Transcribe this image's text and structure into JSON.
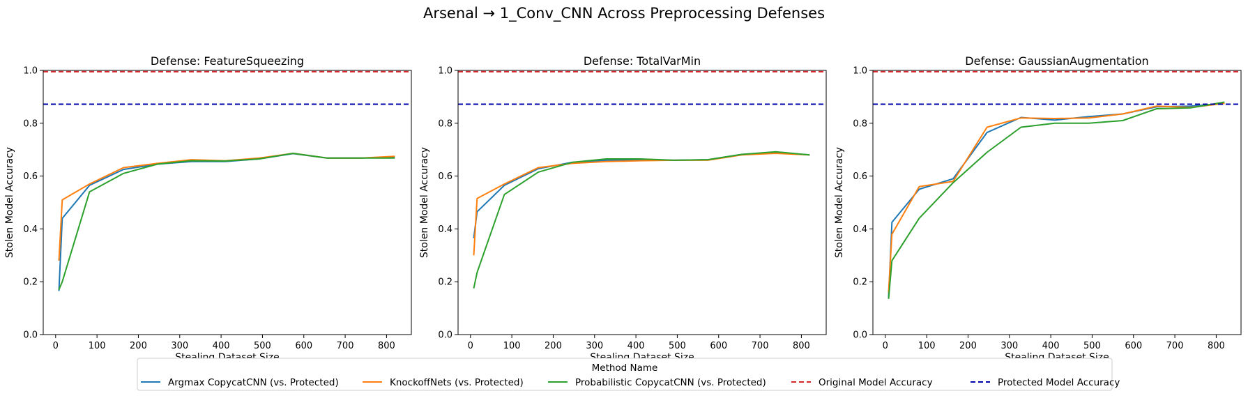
{
  "figure": {
    "title": "Arsenal → 1_Conv_CNN Across Preprocessing Defenses"
  },
  "colors": {
    "argmax": "#1f77b4",
    "knockoff": "#ff7f0e",
    "probabilistic": "#2ca02c",
    "original": "#d62728",
    "protected": "#0000aa"
  },
  "legend": {
    "title": "Method Name",
    "placement": "bottom-center",
    "items": [
      {
        "label": "Argmax CopycatCNN (vs. Protected)",
        "color_key": "argmax",
        "style": "solid"
      },
      {
        "label": "KnockoffNets (vs. Protected)",
        "color_key": "knockoff",
        "style": "solid"
      },
      {
        "label": "Probabilistic CopycatCNN (vs. Protected)",
        "color_key": "probabilistic",
        "style": "solid"
      },
      {
        "label": "Original Model Accuracy",
        "color_key": "original",
        "style": "dashed"
      },
      {
        "label": "Protected Model Accuracy",
        "color_key": "protected",
        "style": "dashed"
      }
    ]
  },
  "chart_data": [
    {
      "type": "line",
      "title": "Defense: FeatureSqueezing",
      "xlabel": "Stealing Dataset Size",
      "ylabel": "Stolen Model Accuracy",
      "xlim": [
        -30,
        860
      ],
      "ylim": [
        0,
        1.0
      ],
      "xticks": [
        0,
        100,
        200,
        300,
        400,
        500,
        600,
        700,
        800
      ],
      "yticks": [
        0.0,
        0.2,
        0.4,
        0.6,
        0.8,
        1.0
      ],
      "grid": false,
      "hlines": [
        {
          "name": "Original Model Accuracy",
          "y": 0.995,
          "color_key": "original"
        },
        {
          "name": "Protected Model Accuracy",
          "y": 0.872,
          "color_key": "protected"
        }
      ],
      "series": [
        {
          "name": "Argmax CopycatCNN (vs. Protected)",
          "color_key": "argmax",
          "x": [
            8,
            16,
            82,
            164,
            246,
            328,
            410,
            492,
            574,
            656,
            738,
            820
          ],
          "y": [
            0.165,
            0.44,
            0.565,
            0.625,
            0.645,
            0.655,
            0.655,
            0.665,
            0.685,
            0.668,
            0.668,
            0.672
          ]
        },
        {
          "name": "KnockoffNets (vs. Protected)",
          "color_key": "knockoff",
          "x": [
            8,
            16,
            82,
            164,
            246,
            328,
            410,
            492,
            574,
            656,
            738,
            820
          ],
          "y": [
            0.28,
            0.51,
            0.57,
            0.632,
            0.648,
            0.662,
            0.658,
            0.668,
            0.686,
            0.668,
            0.668,
            0.675
          ]
        },
        {
          "name": "Probabilistic CopycatCNN (vs. Protected)",
          "color_key": "probabilistic",
          "x": [
            8,
            16,
            82,
            164,
            246,
            328,
            410,
            492,
            574,
            656,
            738,
            820
          ],
          "y": [
            0.17,
            0.2,
            0.54,
            0.61,
            0.645,
            0.658,
            0.657,
            0.665,
            0.686,
            0.668,
            0.668,
            0.668
          ]
        }
      ]
    },
    {
      "type": "line",
      "title": "Defense: TotalVarMin",
      "xlabel": "Stealing Dataset Size",
      "ylabel": "Stolen Model Accuracy",
      "xlim": [
        -30,
        860
      ],
      "ylim": [
        0,
        1.0
      ],
      "xticks": [
        0,
        100,
        200,
        300,
        400,
        500,
        600,
        700,
        800
      ],
      "yticks": [
        0.0,
        0.2,
        0.4,
        0.6,
        0.8,
        1.0
      ],
      "grid": false,
      "hlines": [
        {
          "name": "Original Model Accuracy",
          "y": 0.995,
          "color_key": "original"
        },
        {
          "name": "Protected Model Accuracy",
          "y": 0.872,
          "color_key": "protected"
        }
      ],
      "series": [
        {
          "name": "Argmax CopycatCNN (vs. Protected)",
          "color_key": "argmax",
          "x": [
            8,
            16,
            82,
            164,
            246,
            328,
            410,
            492,
            574,
            656,
            738,
            820
          ],
          "y": [
            0.365,
            0.465,
            0.565,
            0.628,
            0.652,
            0.66,
            0.66,
            0.66,
            0.662,
            0.682,
            0.69,
            0.68
          ]
        },
        {
          "name": "KnockoffNets (vs. Protected)",
          "color_key": "knockoff",
          "x": [
            8,
            16,
            82,
            164,
            246,
            328,
            410,
            492,
            574,
            656,
            738,
            820
          ],
          "y": [
            0.3,
            0.515,
            0.57,
            0.632,
            0.648,
            0.655,
            0.658,
            0.66,
            0.66,
            0.68,
            0.686,
            0.68
          ]
        },
        {
          "name": "Probabilistic CopycatCNN (vs. Protected)",
          "color_key": "probabilistic",
          "x": [
            8,
            16,
            82,
            164,
            246,
            328,
            410,
            492,
            574,
            656,
            738,
            820
          ],
          "y": [
            0.175,
            0.235,
            0.53,
            0.615,
            0.652,
            0.665,
            0.665,
            0.66,
            0.662,
            0.682,
            0.692,
            0.68
          ]
        }
      ]
    },
    {
      "type": "line",
      "title": "Defense: GaussianAugmentation",
      "xlabel": "Stealing Dataset Size",
      "ylabel": "Stolen Model Accuracy",
      "xlim": [
        -30,
        860
      ],
      "ylim": [
        0,
        1.0
      ],
      "xticks": [
        0,
        100,
        200,
        300,
        400,
        500,
        600,
        700,
        800
      ],
      "yticks": [
        0.0,
        0.2,
        0.4,
        0.6,
        0.8,
        1.0
      ],
      "grid": false,
      "hlines": [
        {
          "name": "Original Model Accuracy",
          "y": 0.995,
          "color_key": "original"
        },
        {
          "name": "Protected Model Accuracy",
          "y": 0.872,
          "color_key": "protected"
        }
      ],
      "series": [
        {
          "name": "Argmax CopycatCNN (vs. Protected)",
          "color_key": "argmax",
          "x": [
            8,
            16,
            82,
            164,
            246,
            328,
            410,
            492,
            574,
            656,
            738,
            820
          ],
          "y": [
            0.14,
            0.425,
            0.55,
            0.59,
            0.765,
            0.822,
            0.812,
            0.825,
            0.835,
            0.862,
            0.865,
            0.875
          ]
        },
        {
          "name": "KnockoffNets (vs. Protected)",
          "color_key": "knockoff",
          "x": [
            8,
            16,
            82,
            164,
            246,
            328,
            410,
            492,
            574,
            656,
            738,
            820
          ],
          "y": [
            0.16,
            0.38,
            0.56,
            0.58,
            0.785,
            0.82,
            0.818,
            0.82,
            0.835,
            0.865,
            0.86,
            0.875
          ]
        },
        {
          "name": "Probabilistic CopycatCNN (vs. Protected)",
          "color_key": "probabilistic",
          "x": [
            8,
            16,
            82,
            164,
            246,
            328,
            410,
            492,
            574,
            656,
            738,
            820
          ],
          "y": [
            0.135,
            0.28,
            0.44,
            0.575,
            0.69,
            0.785,
            0.8,
            0.8,
            0.81,
            0.855,
            0.858,
            0.88
          ]
        }
      ]
    }
  ]
}
